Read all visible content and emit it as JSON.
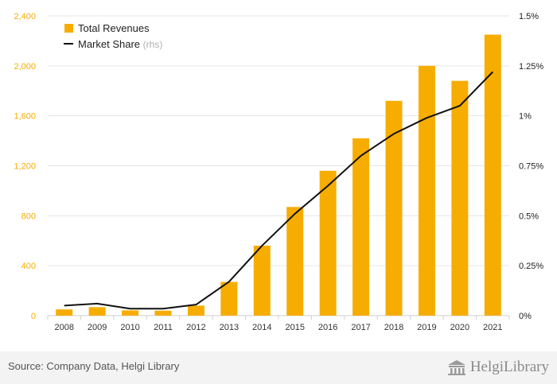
{
  "chart_data": {
    "type": "bar",
    "categories": [
      "2008",
      "2009",
      "2010",
      "2011",
      "2012",
      "2013",
      "2014",
      "2015",
      "2016",
      "2017",
      "2018",
      "2019",
      "2020",
      "2021"
    ],
    "series": [
      {
        "name": "Total Revenues",
        "type": "bar",
        "axis": "left",
        "color": "#f7ad00",
        "values": [
          50,
          68,
          42,
          40,
          80,
          270,
          560,
          870,
          1160,
          1420,
          1720,
          2000,
          1880,
          2250
        ]
      },
      {
        "name": "Market Share",
        "name_suffix": "(rhs)",
        "type": "line",
        "axis": "right",
        "color": "#111111",
        "values": [
          0.05,
          0.06,
          0.035,
          0.035,
          0.055,
          0.17,
          0.35,
          0.51,
          0.65,
          0.8,
          0.91,
          0.99,
          1.05,
          1.22
        ]
      }
    ],
    "y_left": {
      "range": [
        0,
        2400
      ],
      "ticks": [
        0,
        400,
        800,
        1200,
        1600,
        2000,
        2400
      ],
      "tick_labels": [
        "0",
        "400",
        "800",
        "1,200",
        "1,600",
        "2,000",
        "2,400"
      ],
      "color": "#f7ad00"
    },
    "y_right": {
      "range": [
        0,
        1.5
      ],
      "ticks": [
        0,
        0.25,
        0.5,
        0.75,
        1,
        1.25,
        1.5
      ],
      "tick_labels": [
        "0%",
        "0.25%",
        "0.5%",
        "0.75%",
        "1%",
        "1.25%",
        "1.5%"
      ]
    },
    "grid": true,
    "legend_position": "top-left"
  },
  "footer": {
    "source": "Source: Company Data, Helgi Library",
    "brand": "HelgiLibrary",
    "brand_icon": "library-building-icon"
  }
}
